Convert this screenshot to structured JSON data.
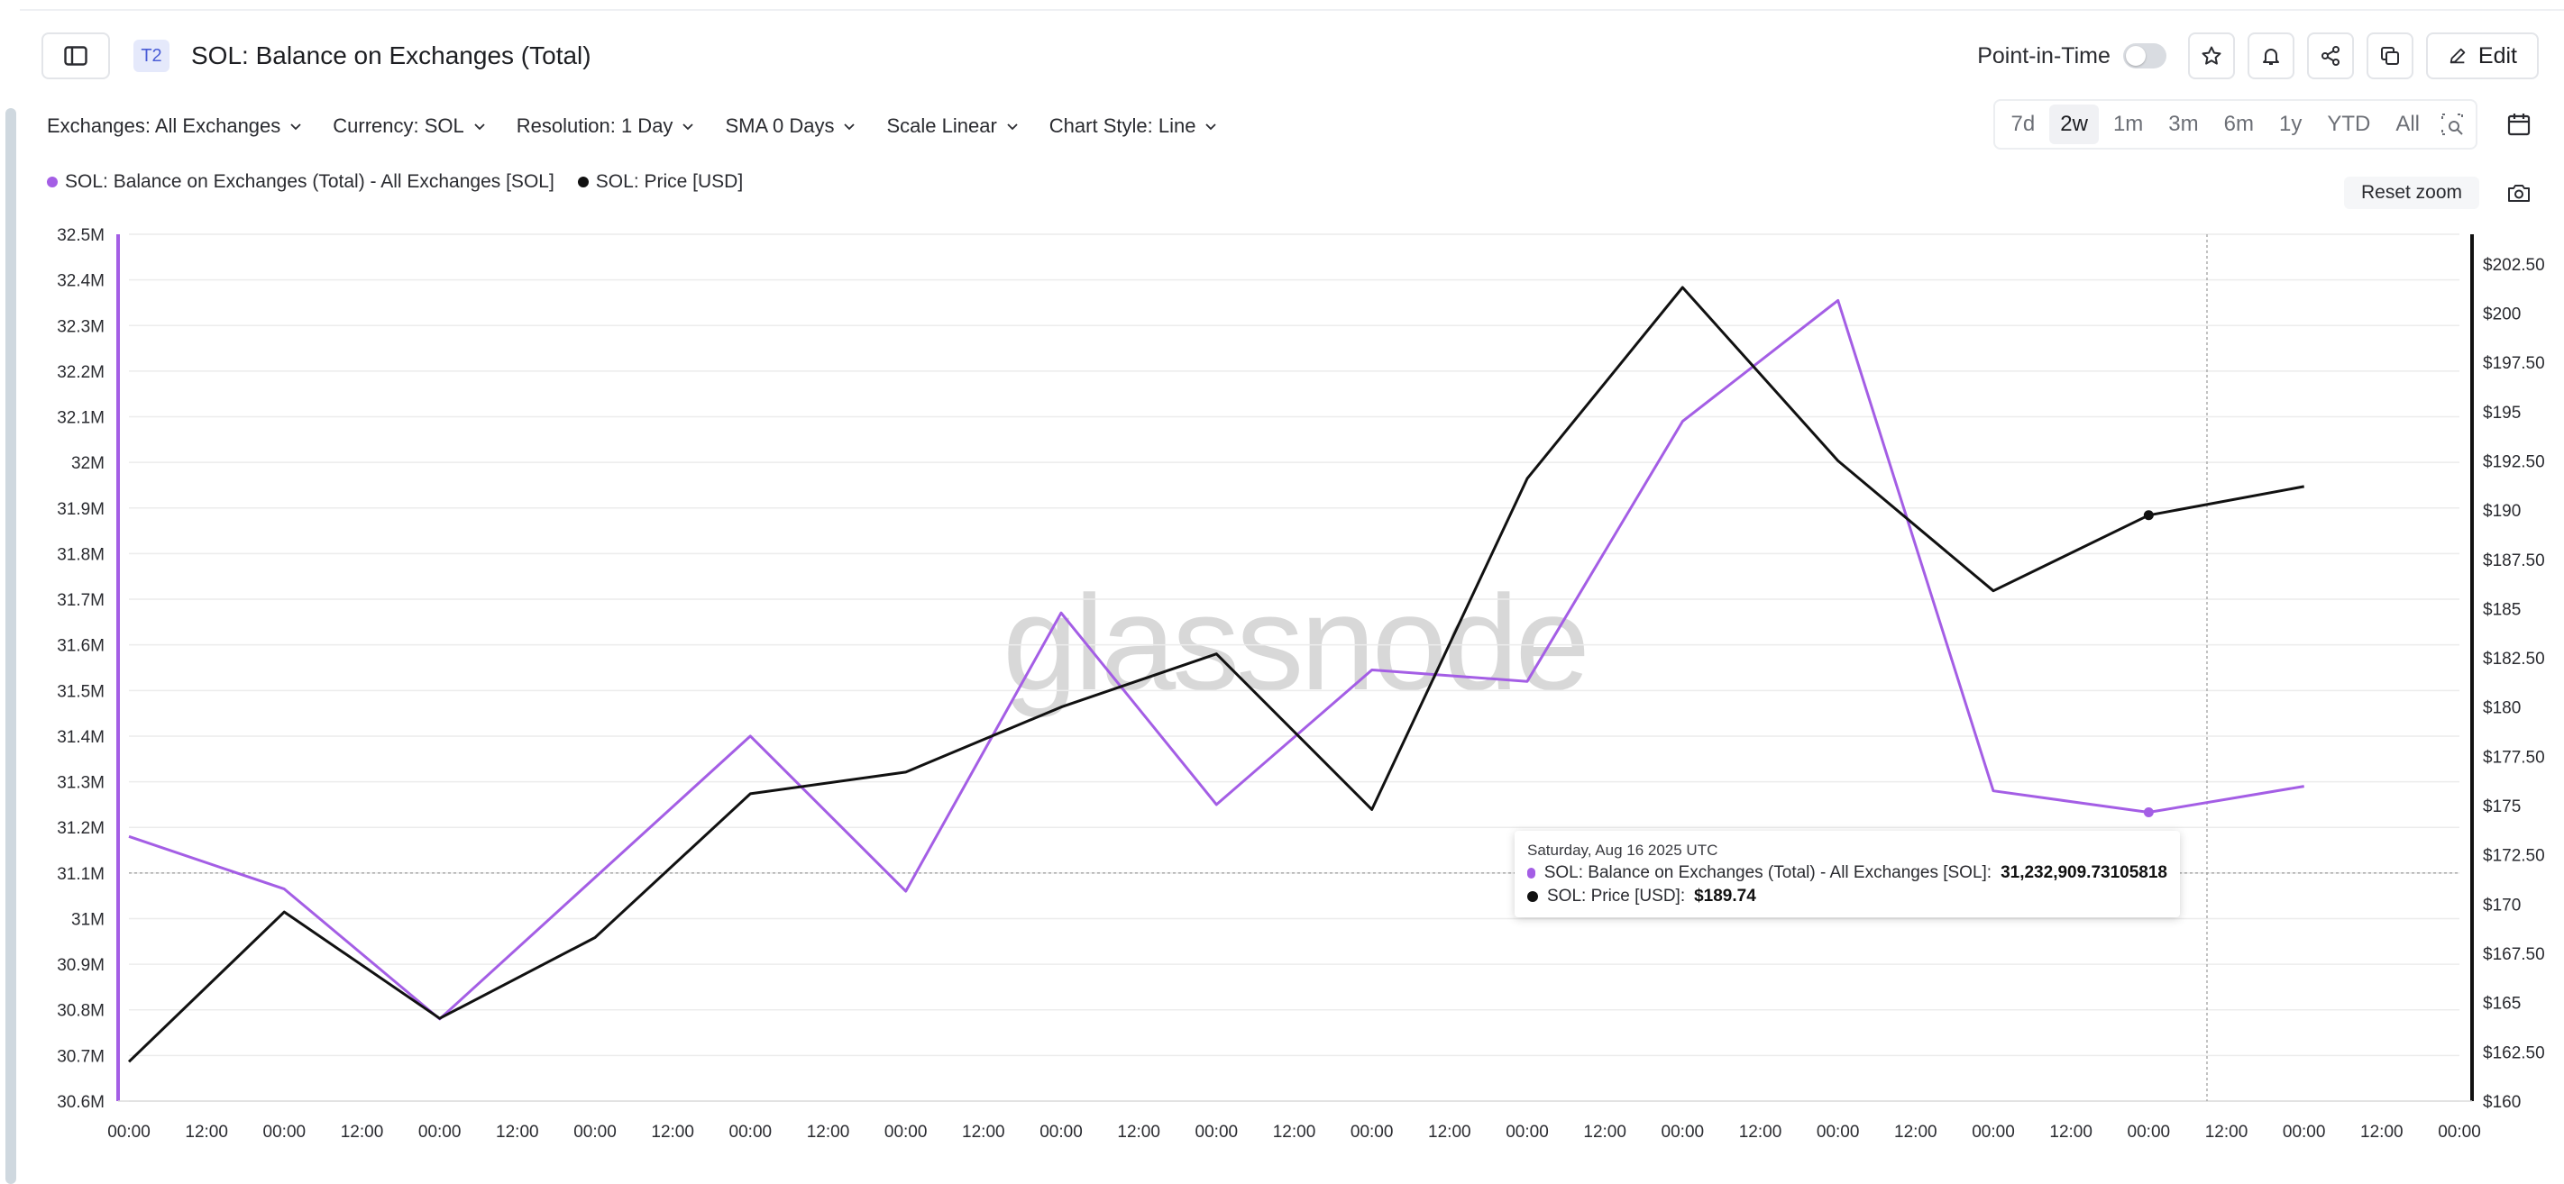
{
  "header": {
    "tier_badge": "T2",
    "title": "SOL: Balance on Exchanges (Total)",
    "point_in_time_label": "Point-in-Time",
    "edit_label": "Edit"
  },
  "filters": [
    {
      "label": "Exchanges: All Exchanges"
    },
    {
      "label": "Currency: SOL"
    },
    {
      "label": "Resolution: 1 Day"
    },
    {
      "label": "SMA 0 Days"
    },
    {
      "label": "Scale Linear"
    },
    {
      "label": "Chart Style: Line"
    }
  ],
  "ranges": [
    {
      "label": "7d",
      "active": false
    },
    {
      "label": "2w",
      "active": true
    },
    {
      "label": "1m",
      "active": false
    },
    {
      "label": "3m",
      "active": false
    },
    {
      "label": "6m",
      "active": false
    },
    {
      "label": "1y",
      "active": false
    },
    {
      "label": "YTD",
      "active": false
    },
    {
      "label": "All",
      "active": false
    }
  ],
  "reset_zoom_label": "Reset zoom",
  "watermark": "glassnode",
  "colors": {
    "balance": "#a45ee5",
    "price": "#111111",
    "grid": "#ececec",
    "crosshair": "#9a9a9a"
  },
  "legend": [
    {
      "name": "SOL: Balance on Exchanges (Total) - All Exchanges [SOL]",
      "color": "#a45ee5"
    },
    {
      "name": "SOL: Price [USD]",
      "color": "#111111"
    }
  ],
  "tooltip": {
    "date": "Saturday, Aug 16 2025 UTC",
    "rows": [
      {
        "label": "SOL: Balance on Exchanges (Total) - All Exchanges [SOL]:",
        "value": "31,232,909.73105818",
        "color": "#a45ee5"
      },
      {
        "label": "SOL: Price [USD]:",
        "value": "$189.74",
        "color": "#111111"
      }
    ]
  },
  "chart_data": {
    "type": "line",
    "x_tick_labels": [
      "00:00",
      "12:00",
      "00:00",
      "12:00",
      "00:00",
      "12:00",
      "00:00",
      "12:00",
      "00:00",
      "12:00",
      "00:00",
      "12:00",
      "00:00",
      "12:00",
      "00:00",
      "12:00",
      "00:00",
      "12:00",
      "00:00",
      "12:00",
      "00:00",
      "12:00",
      "00:00",
      "12:00",
      "00:00",
      "12:00",
      "00:00",
      "12:00",
      "00:00",
      "12:00",
      "00:00"
    ],
    "x_count": 30,
    "y_left": {
      "ticks": [
        "32.5M",
        "32.4M",
        "32.3M",
        "32.2M",
        "32.1M",
        "32M",
        "31.9M",
        "31.8M",
        "31.7M",
        "31.6M",
        "31.5M",
        "31.4M",
        "31.3M",
        "31.2M",
        "31.1M",
        "31M",
        "30.9M",
        "30.8M",
        "30.7M",
        "30.6M"
      ],
      "range": [
        30.6,
        32.5
      ]
    },
    "y_right": {
      "ticks": [
        "$202.50",
        "$200",
        "$197.50",
        "$195",
        "$192.50",
        "$190",
        "$187.50",
        "$185",
        "$182.50",
        "$180",
        "$177.50",
        "$175",
        "$172.50",
        "$170",
        "$167.50",
        "$165",
        "$162.50",
        "$160"
      ],
      "range": [
        160,
        204
      ]
    },
    "series": [
      {
        "name": "SOL: Balance on Exchanges (Total) - All Exchanges [SOL]",
        "axis": "left",
        "x": [
          0,
          2,
          4,
          6,
          8,
          10,
          12,
          14,
          16,
          18,
          20,
          22,
          24,
          26,
          28
        ],
        "values": [
          31.18,
          31.065,
          30.78,
          31.09,
          31.4,
          31.06,
          31.67,
          31.25,
          31.545,
          31.52,
          32.09,
          32.355,
          31.28,
          31.233,
          31.29
        ]
      },
      {
        "name": "SOL: Price [USD]",
        "axis": "right",
        "x": [
          0,
          2,
          4,
          6,
          8,
          10,
          12,
          14,
          16,
          18,
          20,
          22,
          24,
          26,
          28
        ],
        "values": [
          162.0,
          169.6,
          164.2,
          168.3,
          175.6,
          176.7,
          180.0,
          182.7,
          174.8,
          191.6,
          201.3,
          192.5,
          185.9,
          189.74,
          191.2
        ]
      }
    ],
    "highlight": {
      "x": 26,
      "balance": 31.232909,
      "price": 189.74
    },
    "grid": true,
    "legend_position": "top-left"
  }
}
